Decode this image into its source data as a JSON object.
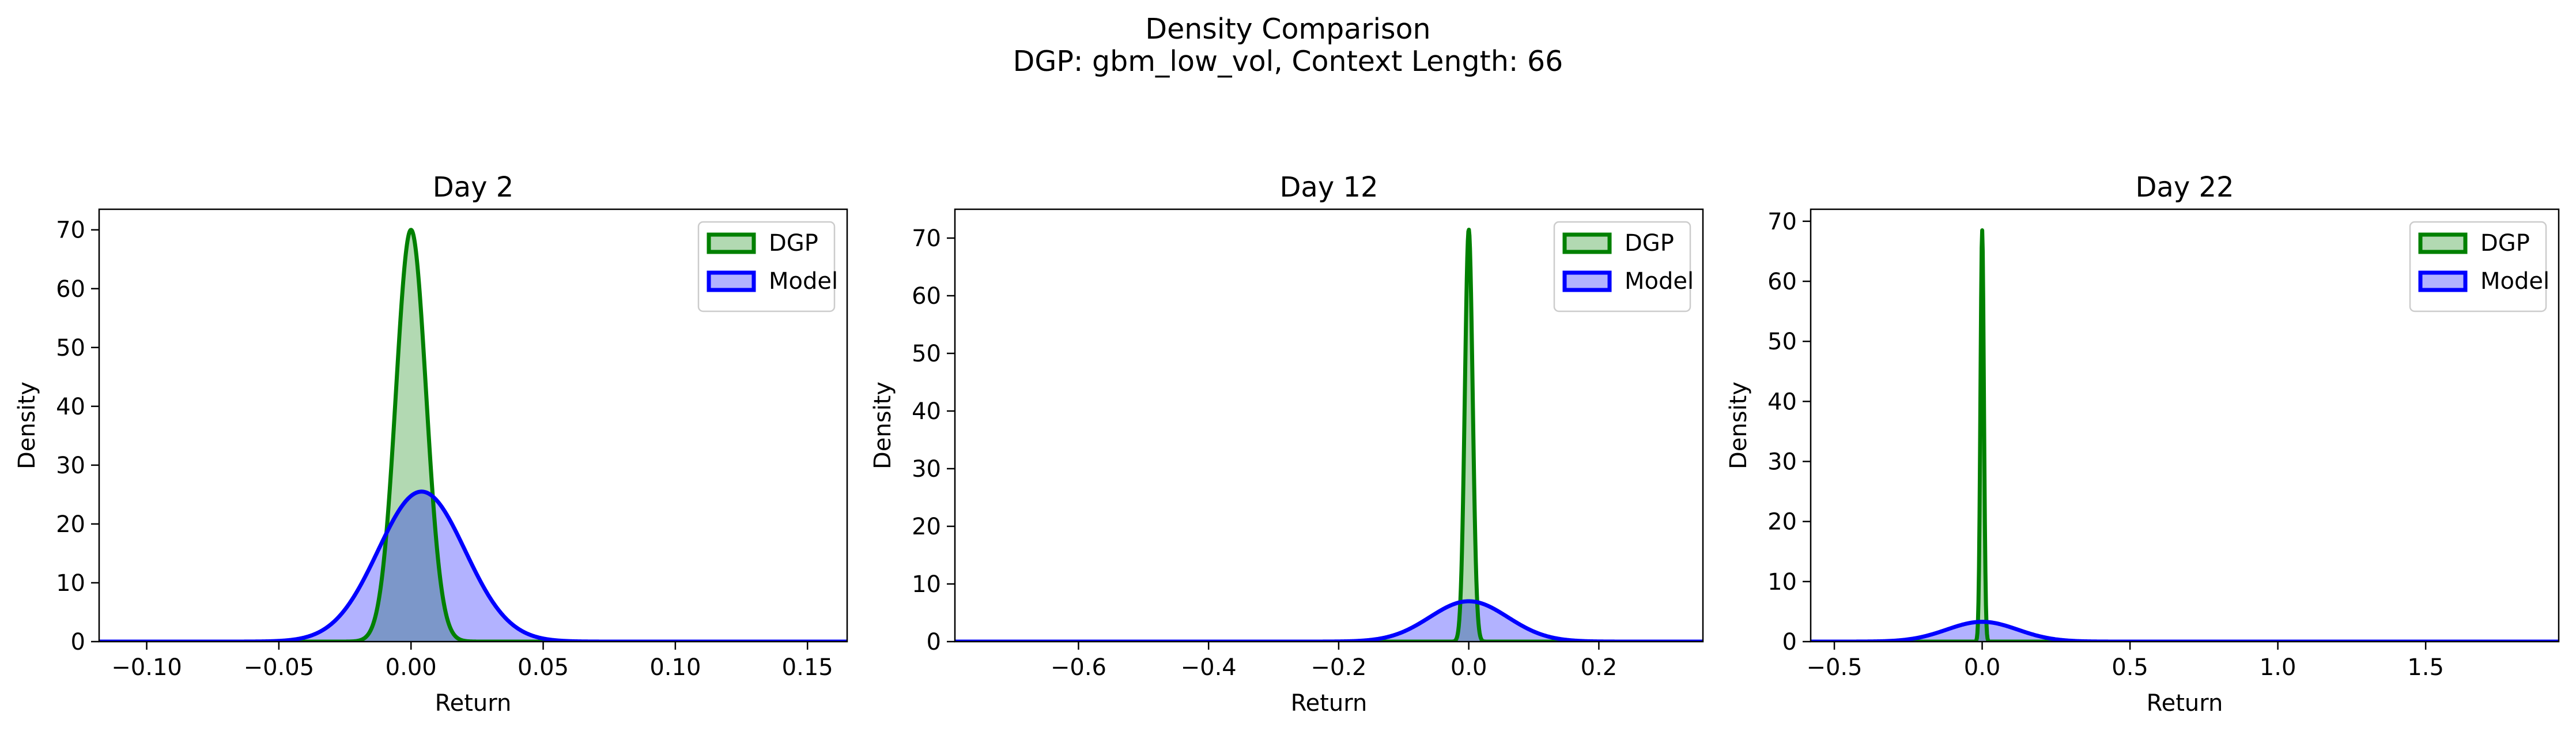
{
  "figure": {
    "title": "Density Comparison",
    "subtitle": "DGP: gbm_low_vol, Context Length: 66"
  },
  "colors": {
    "dgp_line": "#008000",
    "dgp_fill": "#008000",
    "model_line": "#0000ff",
    "model_fill": "#0000ff"
  },
  "chart_data": [
    {
      "type": "area",
      "title": "Day 2",
      "xlabel": "Return",
      "ylabel": "Density",
      "xlim": [
        -0.118,
        0.165
      ],
      "ylim": [
        0,
        73.5
      ],
      "xticks": [
        -0.1,
        -0.05,
        0.0,
        0.05,
        0.1,
        0.15
      ],
      "xtick_labels": [
        "−0.10",
        "−0.05",
        "0.00",
        "0.05",
        "0.10",
        "0.15"
      ],
      "yticks": [
        0,
        10,
        20,
        30,
        40,
        50,
        60,
        70
      ],
      "ytick_labels": [
        "0",
        "10",
        "20",
        "30",
        "40",
        "50",
        "60",
        "70"
      ],
      "legend": "top-right",
      "grid": false,
      "series": [
        {
          "name": "DGP",
          "kind": "normal",
          "mean": 0.0,
          "peak": 70.0
        },
        {
          "name": "Model",
          "kind": "normal",
          "mean": 0.004,
          "peak": 25.5
        }
      ]
    },
    {
      "type": "area",
      "title": "Day 12",
      "xlabel": "Return",
      "ylabel": "Density",
      "xlim": [
        -0.79,
        0.36
      ],
      "ylim": [
        0,
        75
      ],
      "xticks": [
        -0.6,
        -0.4,
        -0.2,
        0.0,
        0.2
      ],
      "xtick_labels": [
        "−0.6",
        "−0.4",
        "−0.2",
        "0.0",
        "0.2"
      ],
      "yticks": [
        0,
        10,
        20,
        30,
        40,
        50,
        60,
        70
      ],
      "ytick_labels": [
        "0",
        "10",
        "20",
        "30",
        "40",
        "50",
        "60",
        "70"
      ],
      "legend": "top-right",
      "grid": false,
      "series": [
        {
          "name": "DGP",
          "kind": "normal",
          "mean": 0.0,
          "peak": 71.5
        },
        {
          "name": "Model",
          "kind": "normal",
          "mean": 0.0,
          "peak": 7.0
        }
      ]
    },
    {
      "type": "area",
      "title": "Day 22",
      "xlabel": "Return",
      "ylabel": "Density",
      "xlim": [
        -0.58,
        1.95
      ],
      "ylim": [
        0,
        72
      ],
      "xticks": [
        -0.5,
        0.0,
        0.5,
        1.0,
        1.5
      ],
      "xtick_labels": [
        "−0.5",
        "0.0",
        "0.5",
        "1.0",
        "1.5"
      ],
      "yticks": [
        0,
        10,
        20,
        30,
        40,
        50,
        60,
        70
      ],
      "ytick_labels": [
        "0",
        "10",
        "20",
        "30",
        "40",
        "50",
        "60",
        "70"
      ],
      "legend": "top-right",
      "grid": false,
      "series": [
        {
          "name": "DGP",
          "kind": "normal",
          "mean": 0.0,
          "peak": 68.5
        },
        {
          "name": "Model",
          "kind": "normal",
          "mean": 0.0,
          "peak": 3.3
        }
      ]
    }
  ]
}
